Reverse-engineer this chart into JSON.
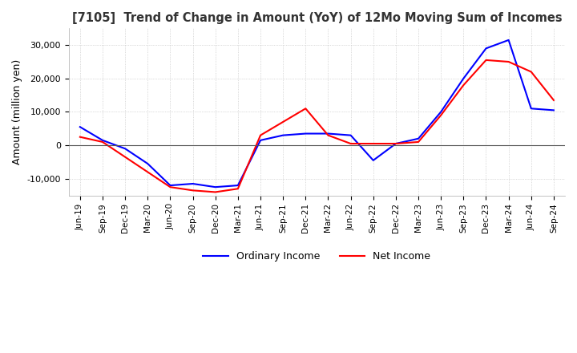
{
  "title": "[7105]  Trend of Change in Amount (YoY) of 12Mo Moving Sum of Incomes",
  "ylabel": "Amount (million yen)",
  "ylim": [
    -15000,
    35000
  ],
  "yticks": [
    -10000,
    0,
    10000,
    20000,
    30000
  ],
  "x_labels": [
    "Jun-19",
    "Sep-19",
    "Dec-19",
    "Mar-20",
    "Jun-20",
    "Sep-20",
    "Dec-20",
    "Mar-21",
    "Jun-21",
    "Sep-21",
    "Dec-21",
    "Mar-22",
    "Jun-22",
    "Sep-22",
    "Dec-22",
    "Mar-23",
    "Jun-23",
    "Sep-23",
    "Dec-23",
    "Mar-24",
    "Jun-24",
    "Sep-24"
  ],
  "ordinary_income": [
    5500,
    1500,
    -1000,
    -5500,
    -12000,
    -11500,
    -12500,
    -12000,
    1500,
    3000,
    3500,
    3500,
    3000,
    -4500,
    500,
    2000,
    10000,
    20000,
    29000,
    31500,
    11000,
    10500
  ],
  "net_income": [
    2500,
    1000,
    -3500,
    -8000,
    -12500,
    -13500,
    -14000,
    -13000,
    3000,
    7000,
    11000,
    3000,
    500,
    500,
    500,
    1000,
    9000,
    18000,
    25500,
    25000,
    22000,
    13500
  ],
  "ordinary_color": "#0000ff",
  "net_color": "#ff0000",
  "grid_color": "#bbbbbb",
  "grid_style": "dotted",
  "background_color": "#ffffff",
  "legend_ordinary": "Ordinary Income",
  "legend_net": "Net Income",
  "zero_line_color": "#555555"
}
